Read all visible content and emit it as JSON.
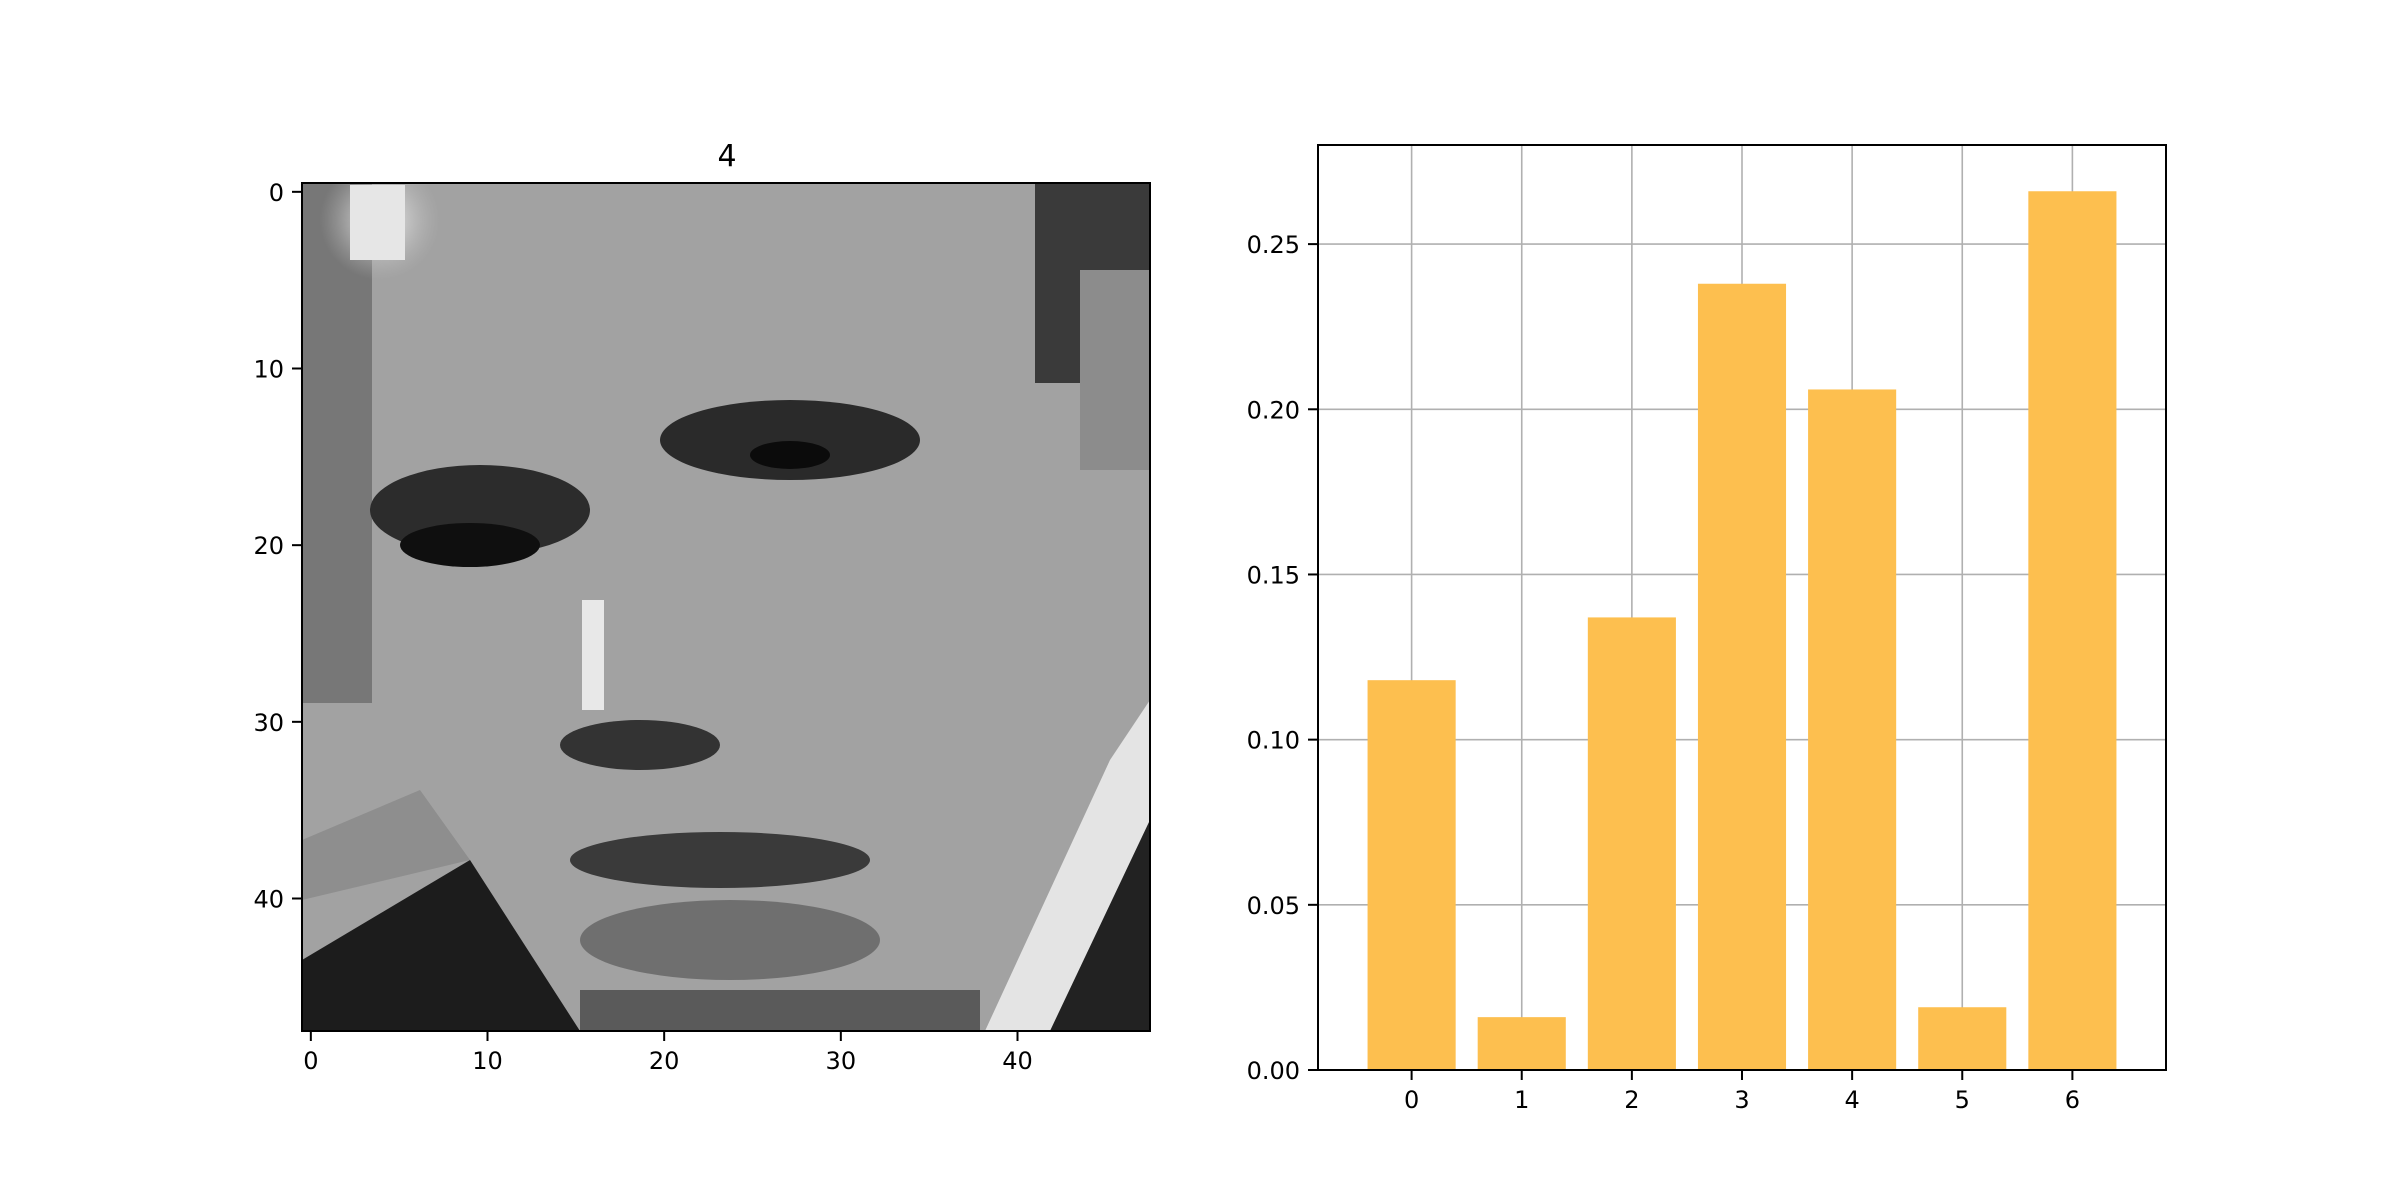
{
  "image_panel": {
    "title": "4",
    "colormap": "gray",
    "image_size": [
      48,
      48
    ],
    "xticks": [
      0,
      10,
      20,
      30,
      40
    ],
    "yticks": [
      0,
      10,
      20,
      30,
      40
    ]
  },
  "chart_data": {
    "type": "bar",
    "categories": [
      "0",
      "1",
      "2",
      "3",
      "4",
      "5",
      "6"
    ],
    "values": [
      0.118,
      0.016,
      0.137,
      0.238,
      0.206,
      0.019,
      0.266
    ],
    "ylim": [
      0,
      0.28
    ],
    "yticks": [
      "0.00",
      "0.05",
      "0.10",
      "0.15",
      "0.20",
      "0.25"
    ],
    "grid": true,
    "bar_color": "#fdbf4f",
    "title": "",
    "xlabel": "",
    "ylabel": ""
  }
}
